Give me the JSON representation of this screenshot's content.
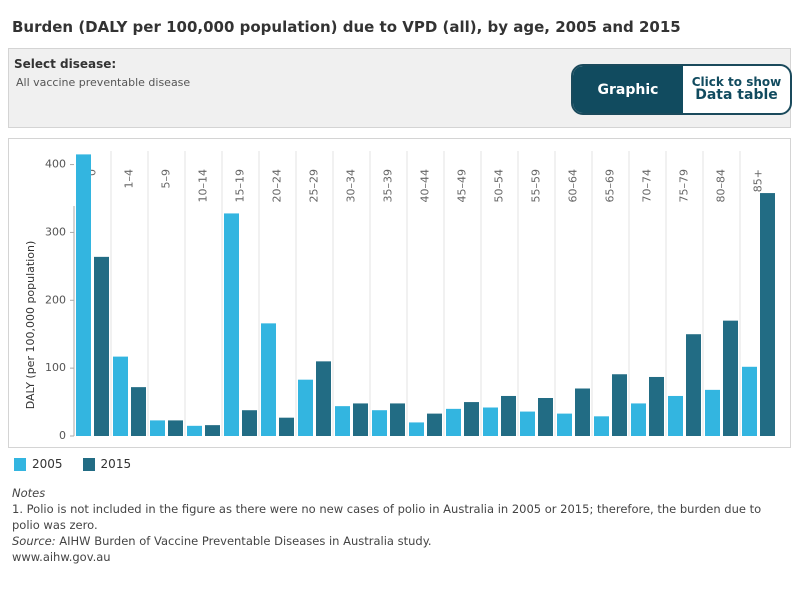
{
  "title": "Burden (DALY per 100,000 population) due to VPD (all), by age, 2005 and 2015",
  "filter": {
    "label": "Select disease:",
    "value": "All vaccine preventable disease"
  },
  "toggle": {
    "graphic_label": "Graphic",
    "table_line1": "Click to show",
    "table_line2": "Data table"
  },
  "colors": {
    "series_2005": "#33b5e0",
    "series_2015": "#226c84",
    "toggle_bg": "#114b5f"
  },
  "chart_data": {
    "type": "bar",
    "ylabel": "DALY (per 100,000 population)",
    "xlabel": "",
    "ylim": [
      0,
      420
    ],
    "yticks": [
      0,
      100,
      200,
      300,
      400
    ],
    "grid": false,
    "legend_position": "bottom-left",
    "categories": [
      "0",
      "1–4",
      "5–9",
      "10–14",
      "15–19",
      "20–24",
      "25–29",
      "30–34",
      "35–39",
      "40–44",
      "45–49",
      "50–54",
      "55–59",
      "60–64",
      "65–69",
      "70–74",
      "75–79",
      "80–84",
      "85+"
    ],
    "series": [
      {
        "name": "2005",
        "values": [
          415,
          117,
          23,
          15,
          328,
          166,
          83,
          44,
          38,
          20,
          40,
          42,
          36,
          33,
          29,
          48,
          59,
          68,
          102
        ]
      },
      {
        "name": "2015",
        "values": [
          264,
          72,
          23,
          16,
          38,
          27,
          110,
          48,
          48,
          33,
          50,
          59,
          56,
          70,
          91,
          87,
          150,
          170,
          358
        ]
      }
    ]
  },
  "notes": {
    "heading": "Notes",
    "note1": "1. Polio is not included in the figure as there were no new cases of polio in Australia in 2005 or 2015; therefore, the burden due to polio was zero.",
    "source_label": "Source:",
    "source_text": " AIHW Burden of Vaccine Preventable Diseases in Australia study.",
    "website": "www.aihw.gov.au"
  }
}
